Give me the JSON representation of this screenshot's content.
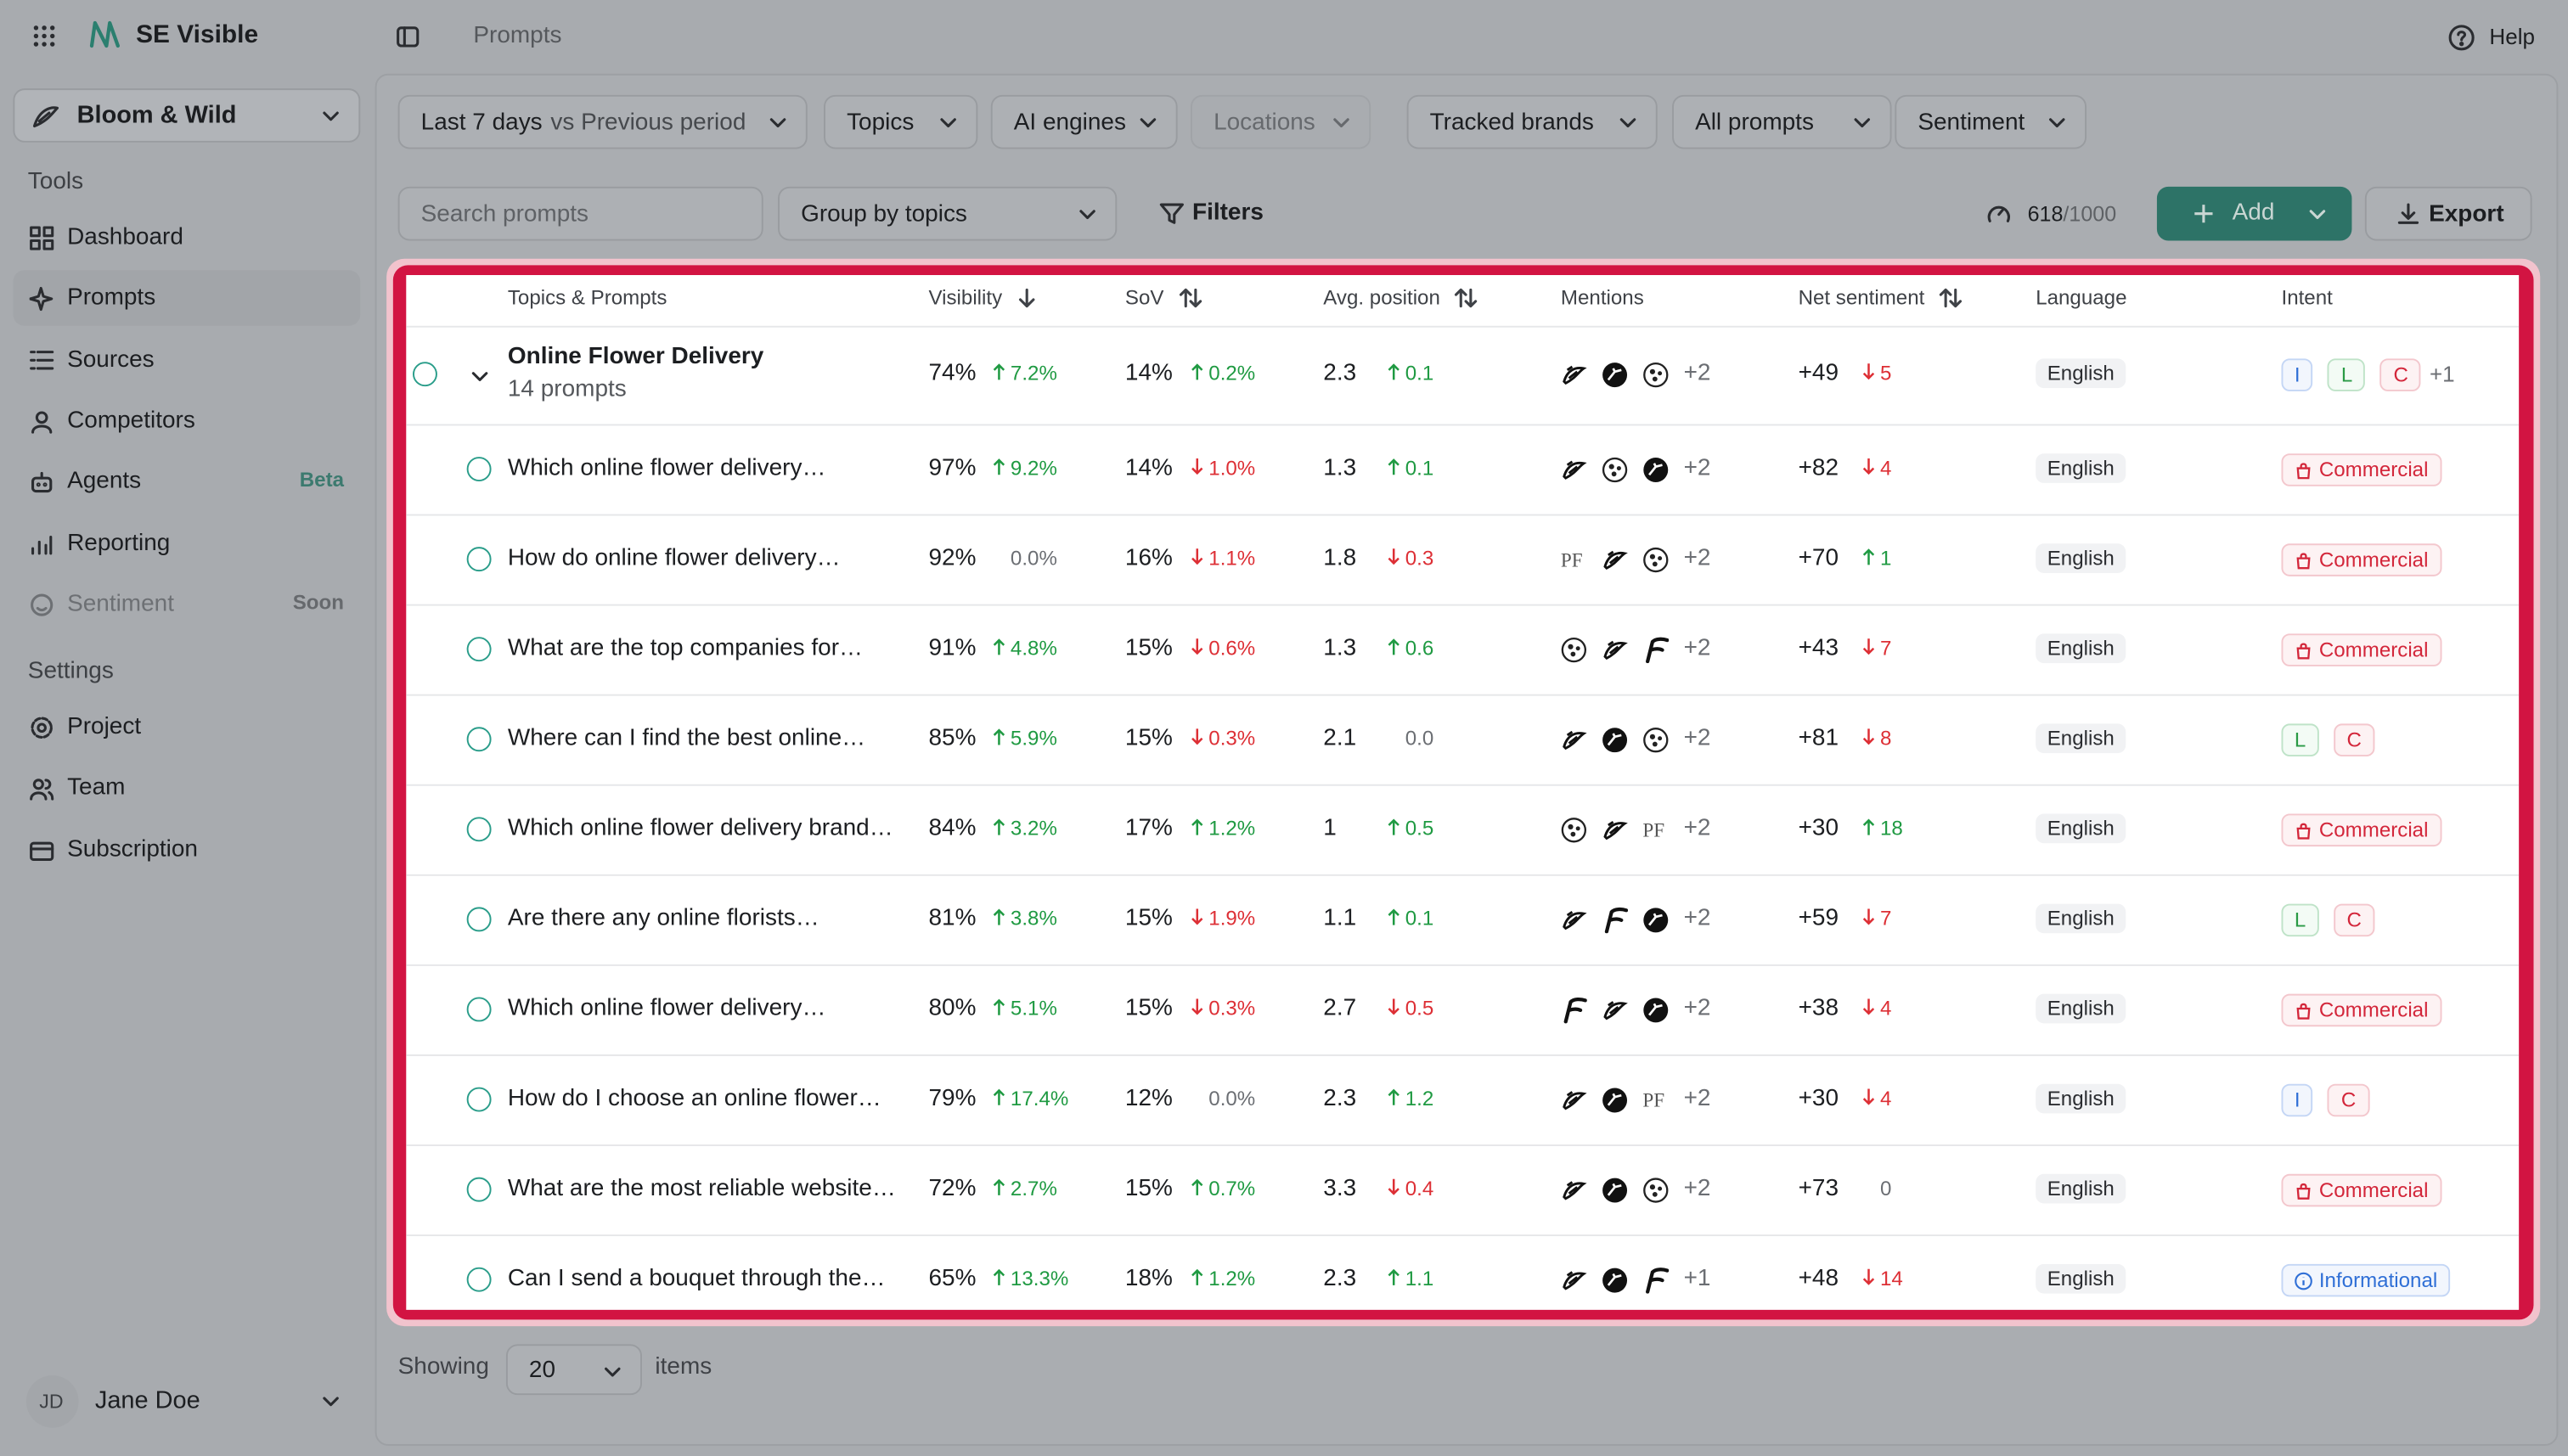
{
  "app": {
    "name": "SE Visible",
    "breadcrumb": "Prompts",
    "help": "Help",
    "workspace": "Bloom & Wild"
  },
  "sidebar": {
    "tools_heading": "Tools",
    "tools": [
      {
        "label": "Dashboard"
      },
      {
        "label": "Prompts",
        "active": true
      },
      {
        "label": "Sources"
      },
      {
        "label": "Competitors"
      },
      {
        "label": "Agents",
        "pill": "Beta"
      },
      {
        "label": "Reporting"
      },
      {
        "label": "Sentiment",
        "pill": "Soon",
        "disabled": true
      }
    ],
    "settings_heading": "Settings",
    "settings": [
      {
        "label": "Project"
      },
      {
        "label": "Team"
      },
      {
        "label": "Subscription"
      }
    ],
    "user": {
      "initials": "JD",
      "name": "Jane Doe"
    }
  },
  "filters": {
    "period": "Last 7 days",
    "compare": "vs Previous period",
    "items": [
      "Topics",
      "AI engines",
      "Locations",
      "Tracked brands",
      "All prompts",
      "Sentiment"
    ],
    "disabled_index": 2
  },
  "toolbar": {
    "search_placeholder": "Search prompts",
    "group": "Group by topics",
    "filters": "Filters",
    "usage": "618",
    "limit": "/1000",
    "add": "Add",
    "export": "Export"
  },
  "table": {
    "headers": [
      "Topics & Prompts",
      "Visibility",
      "SoV",
      "Avg. position",
      "Mentions",
      "Net sentiment",
      "Language",
      "Intent"
    ],
    "group": {
      "title": "Online Flower Delivery",
      "subtitle": "14 prompts",
      "visibility": "74%",
      "vis_change": "7.2%",
      "vis_dir": "up",
      "sov": "14%",
      "sov_change": "0.2%",
      "sov_dir": "up",
      "pos": "2.3",
      "pos_change": "0.1",
      "pos_dir": "up",
      "more": "+2",
      "sentiment": "+49",
      "sent_change": "5",
      "sent_dir": "down",
      "language": "English",
      "intents": [
        {
          "label": "I",
          "tone": "blue"
        },
        {
          "label": "L",
          "tone": "green"
        },
        {
          "label": "C",
          "tone": "red"
        }
      ],
      "intent_more": "+1"
    },
    "rows": [
      {
        "prompt": "Which online flower delivery…",
        "visibility": "97%",
        "vis_change": "9.2%",
        "vis_dir": "up",
        "sov": "14%",
        "sov_change": "1.0%",
        "sov_dir": "down",
        "pos": "1.3",
        "pos_change": "0.1",
        "pos_dir": "up",
        "more": "+2",
        "sentiment": "+82",
        "sent_change": "4",
        "sent_dir": "down",
        "language": "English",
        "intents": [
          {
            "label": "Commercial",
            "tone": "red",
            "icon": "bag"
          }
        ]
      },
      {
        "prompt": "How do online flower delivery…",
        "visibility": "92%",
        "vis_change": "0.0%",
        "vis_dir": "flat",
        "sov": "16%",
        "sov_change": "1.1%",
        "sov_dir": "down",
        "pos": "1.8",
        "pos_change": "0.3",
        "pos_dir": "down",
        "pf": "PF",
        "more": "+2",
        "sentiment": "+70",
        "sent_change": "1",
        "sent_dir": "up",
        "language": "English",
        "intents": [
          {
            "label": "Commercial",
            "tone": "red",
            "icon": "bag"
          }
        ]
      },
      {
        "prompt": "What are the top companies for…",
        "visibility": "91%",
        "vis_change": "4.8%",
        "vis_dir": "up",
        "sov": "15%",
        "sov_change": "0.6%",
        "sov_dir": "down",
        "pos": "1.3",
        "pos_change": "0.6",
        "pos_dir": "up",
        "more": "+2",
        "sentiment": "+43",
        "sent_change": "7",
        "sent_dir": "down",
        "language": "English",
        "intents": [
          {
            "label": "Commercial",
            "tone": "red",
            "icon": "bag"
          }
        ]
      },
      {
        "prompt": "Where can I find the best online…",
        "visibility": "85%",
        "vis_change": "5.9%",
        "vis_dir": "up",
        "sov": "15%",
        "sov_change": "0.3%",
        "sov_dir": "down",
        "pos": "2.1",
        "pos_change": "0.0",
        "pos_dir": "flat",
        "more": "+2",
        "sentiment": "+81",
        "sent_change": "8",
        "sent_dir": "down",
        "language": "English",
        "intents": [
          {
            "label": "L",
            "tone": "green"
          },
          {
            "label": "C",
            "tone": "red"
          }
        ]
      },
      {
        "prompt": "Which online flower delivery brand…",
        "visibility": "84%",
        "vis_change": "3.2%",
        "vis_dir": "up",
        "sov": "17%",
        "sov_change": "1.2%",
        "sov_dir": "up",
        "pos": "1",
        "pos_change": "0.5",
        "pos_dir": "up",
        "pf": "PF",
        "more": "+2",
        "sentiment": "+30",
        "sent_change": "18",
        "sent_dir": "up",
        "language": "English",
        "intents": [
          {
            "label": "Commercial",
            "tone": "red",
            "icon": "bag"
          }
        ]
      },
      {
        "prompt": "Are there any online florists…",
        "visibility": "81%",
        "vis_change": "3.8%",
        "vis_dir": "up",
        "sov": "15%",
        "sov_change": "1.9%",
        "sov_dir": "down",
        "pos": "1.1",
        "pos_change": "0.1",
        "pos_dir": "up",
        "more": "+2",
        "sentiment": "+59",
        "sent_change": "7",
        "sent_dir": "down",
        "language": "English",
        "intents": [
          {
            "label": "L",
            "tone": "green"
          },
          {
            "label": "C",
            "tone": "red"
          }
        ]
      },
      {
        "prompt": "Which online flower delivery…",
        "visibility": "80%",
        "vis_change": "5.1%",
        "vis_dir": "up",
        "sov": "15%",
        "sov_change": "0.3%",
        "sov_dir": "down",
        "pos": "2.7",
        "pos_change": "0.5",
        "pos_dir": "down",
        "more": "+2",
        "sentiment": "+38",
        "sent_change": "4",
        "sent_dir": "down",
        "language": "English",
        "intents": [
          {
            "label": "Commercial",
            "tone": "red",
            "icon": "bag"
          }
        ]
      },
      {
        "prompt": "How do I choose an online flower…",
        "visibility": "79%",
        "vis_change": "17.4%",
        "vis_dir": "up",
        "sov": "12%",
        "sov_change": "0.0%",
        "sov_dir": "flat",
        "pos": "2.3",
        "pos_change": "1.2",
        "pos_dir": "up",
        "pf": "PF",
        "more": "+2",
        "sentiment": "+30",
        "sent_change": "4",
        "sent_dir": "down",
        "language": "English",
        "intents": [
          {
            "label": "I",
            "tone": "blue"
          },
          {
            "label": "C",
            "tone": "red"
          }
        ]
      },
      {
        "prompt": "What are the most reliable website…",
        "visibility": "72%",
        "vis_change": "2.7%",
        "vis_dir": "up",
        "sov": "15%",
        "sov_change": "0.7%",
        "sov_dir": "up",
        "pos": "3.3",
        "pos_change": "0.4",
        "pos_dir": "down",
        "more": "+2",
        "sentiment": "+73",
        "sent_change": "0",
        "sent_dir": "flat",
        "language": "English",
        "intents": [
          {
            "label": "Commercial",
            "tone": "red",
            "icon": "bag"
          }
        ]
      },
      {
        "prompt": "Can I send a bouquet through the…",
        "visibility": "65%",
        "vis_change": "13.3%",
        "vis_dir": "up",
        "sov": "18%",
        "sov_change": "1.2%",
        "sov_dir": "up",
        "pos": "2.3",
        "pos_change": "1.1",
        "pos_dir": "up",
        "more": "+1",
        "sentiment": "+48",
        "sent_change": "14",
        "sent_dir": "down",
        "language": "English",
        "intents": [
          {
            "label": "Informational",
            "tone": "blue",
            "icon": "info"
          }
        ]
      }
    ]
  },
  "footer": {
    "showing": "Showing",
    "page_size": "20",
    "items": "items"
  }
}
